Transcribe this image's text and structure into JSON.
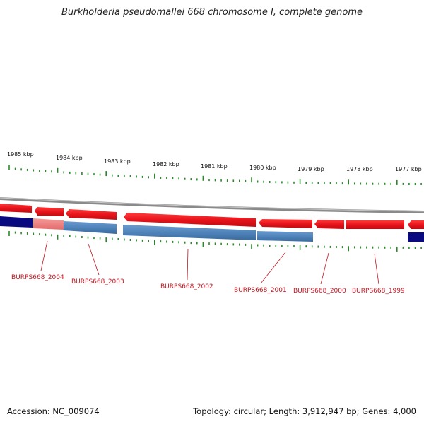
{
  "title": "Burkholderia pseudomallei 668 chromosome I, complete genome",
  "footer": {
    "accession": "Accession: NC_009074",
    "summary": "Topology: circular; Length: 3,912,947 bp; Genes: 4,000"
  },
  "kbp_labels": [
    "1985 kbp",
    "1984 kbp",
    "1983 kbp",
    "1982 kbp",
    "1981 kbp",
    "1980 kbp",
    "1979 kbp",
    "1978 kbp",
    "1977 kbp"
  ],
  "gene_labels": [
    "BURPS668_2004",
    "BURPS668_2003",
    "BURPS668_2002",
    "BURPS668_2001",
    "BURPS668_2000",
    "BURPS668_1999"
  ],
  "colors": {
    "forward_gene": "#e8141c",
    "highlight_gene": "#ef7d7d",
    "reverse_gene": "#4a7fb5",
    "dark_gene": "#0a0a80",
    "ticks": "#2a8a2a",
    "labels": "#c0141e"
  }
}
